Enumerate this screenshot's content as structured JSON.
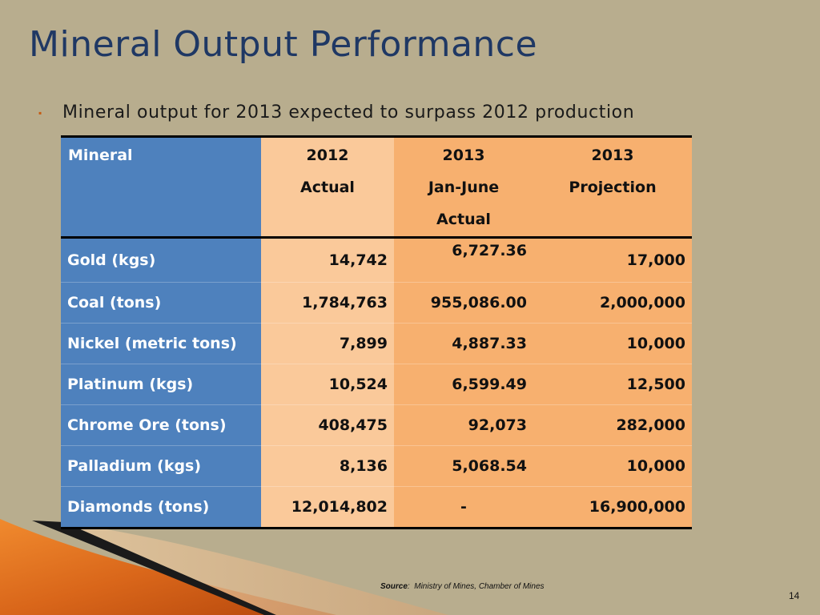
{
  "slide": {
    "title": "Mineral Output Performance",
    "bullet": "Mineral output for 2013 expected to surpass 2012 production",
    "table": {
      "headers": [
        {
          "lines": [
            "Mineral"
          ]
        },
        {
          "lines": [
            "2012",
            "Actual"
          ]
        },
        {
          "lines": [
            "2013",
            "Jan-June",
            "Actual"
          ]
        },
        {
          "lines": [
            "2013",
            "Projection"
          ]
        }
      ],
      "rows": [
        [
          "Gold (kgs)",
          "14,742",
          "6,727.36",
          "17,000"
        ],
        [
          "Coal (tons)",
          "1,784,763",
          "955,086.00",
          "2,000,000"
        ],
        [
          "Nickel (metric tons)",
          "7,899",
          "4,887.33",
          "10,000"
        ],
        [
          "Platinum (kgs)",
          "10,524",
          "6,599.49",
          "12,500"
        ],
        [
          "Chrome Ore (tons)",
          "408,475",
          "92,073",
          "282,000"
        ],
        [
          "Palladium (kgs)",
          "8,136",
          "5,068.54",
          "10,000"
        ],
        [
          "Diamonds (tons)",
          "12,014,802",
          "-",
          "16,900,000"
        ]
      ]
    },
    "source_label": "Source",
    "source_text": "Ministry of Mines, Chamber of Mines",
    "page_number": "14",
    "colors": {
      "background": "#b8ad8e",
      "title": "#1f3864",
      "mineral_column": "#4e81bd",
      "col_2012": "#fac99a",
      "col_2013": "#f7b06f",
      "bullet": "#c55a11"
    }
  }
}
